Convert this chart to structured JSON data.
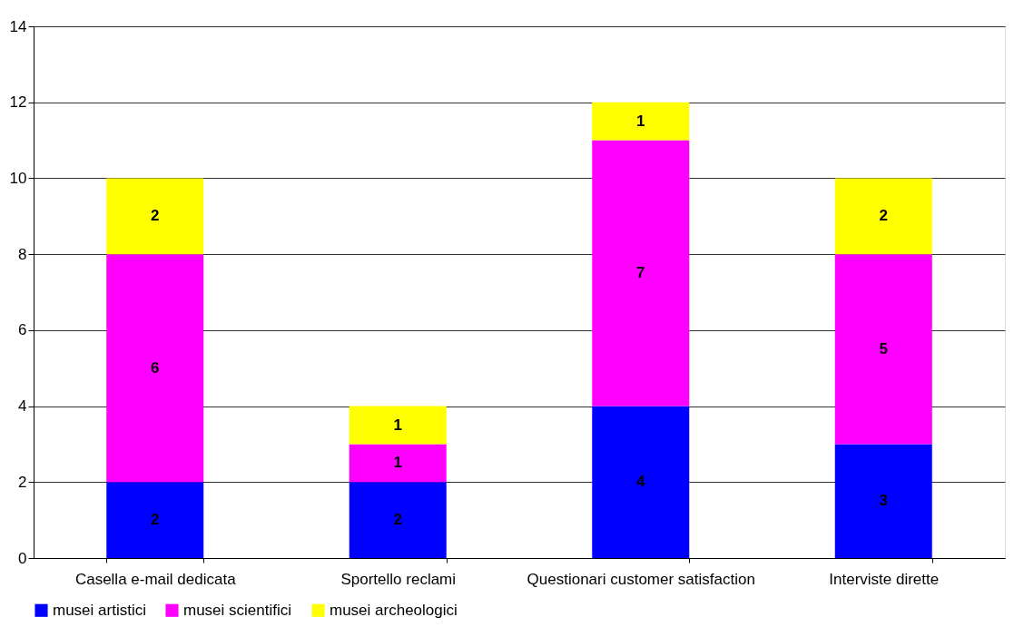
{
  "chart_data": {
    "type": "bar",
    "stacked": true,
    "categories": [
      "Casella e-mail dedicata",
      "Sportello reclami",
      "Questionari customer satisfaction",
      "Interviste dirette"
    ],
    "series": [
      {
        "name": "musei artistici",
        "color": "#0000ff",
        "values": [
          2,
          2,
          4,
          3
        ]
      },
      {
        "name": "musei scientifici",
        "color": "#ff00ff",
        "values": [
          6,
          1,
          7,
          5
        ]
      },
      {
        "name": "musei archeologici",
        "color": "#ffff00",
        "values": [
          2,
          1,
          1,
          2
        ]
      }
    ],
    "ylim": [
      0,
      14
    ],
    "yticks": [
      0,
      2,
      4,
      6,
      8,
      10,
      12,
      14
    ],
    "grid": "y",
    "legend": "bottom",
    "data_labels": true
  }
}
